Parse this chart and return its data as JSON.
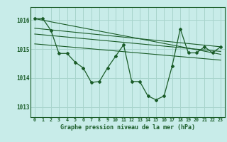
{
  "title": "Graphe pression niveau de la mer (hPa)",
  "bg_color": "#c8ece9",
  "grid_color": "#a8d4cc",
  "line_color": "#1a5c28",
  "xlim": [
    -0.5,
    23.5
  ],
  "ylim": [
    1012.65,
    1016.45
  ],
  "yticks": [
    1013,
    1014,
    1015,
    1016
  ],
  "xtick_labels": [
    "0",
    "1",
    "2",
    "3",
    "4",
    "5",
    "6",
    "7",
    "8",
    "9",
    "10",
    "11",
    "12",
    "13",
    "14",
    "15",
    "16",
    "17",
    "18",
    "19",
    "20",
    "21",
    "22",
    "23"
  ],
  "series1_x": [
    0,
    1,
    2,
    3,
    4,
    5,
    6,
    7,
    8,
    9,
    10,
    11,
    12,
    13,
    14,
    15,
    16,
    17,
    18,
    19,
    20,
    21,
    22,
    23
  ],
  "series1_y": [
    1016.05,
    1016.05,
    1015.65,
    1014.85,
    1014.85,
    1014.55,
    1014.35,
    1013.85,
    1013.88,
    1014.35,
    1014.75,
    1015.15,
    1013.88,
    1013.88,
    1013.38,
    1013.25,
    1013.38,
    1014.42,
    1015.7,
    1014.87,
    1014.87,
    1015.08,
    1014.87,
    1015.08
  ],
  "trend1_x": [
    0,
    23
  ],
  "trend1_y": [
    1016.05,
    1014.82
  ],
  "trend2_x": [
    0,
    23
  ],
  "trend2_y": [
    1015.72,
    1015.08
  ],
  "trend3_x": [
    0,
    23
  ],
  "trend3_y": [
    1015.52,
    1014.92
  ],
  "trend4_x": [
    0,
    23
  ],
  "trend4_y": [
    1015.18,
    1014.62
  ]
}
